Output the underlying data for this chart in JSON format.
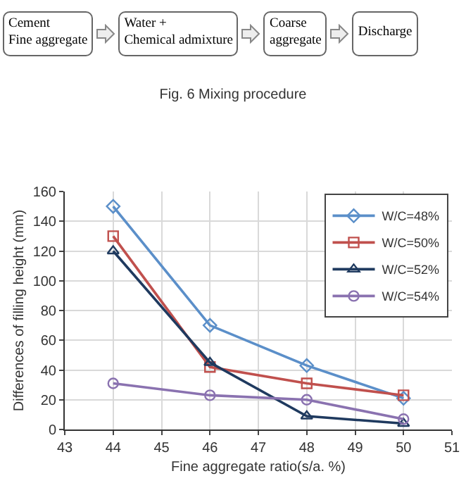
{
  "chart_data": {
    "type": "line",
    "annotations": [
      "Cement\nFine aggregate",
      "Water +\nChemical admixture",
      "Coarse\naggregate",
      "Discharge",
      "Fig. 6 Mixing procedure"
    ],
    "xlabel": "Fine aggregate ratio(s/a. %)",
    "ylabel": "Differences of filling height (mm)",
    "x": [
      44,
      46,
      48,
      50
    ],
    "series": [
      {
        "name": "W/C=48%",
        "color": "#5b8fc9",
        "marker": "diamond",
        "values": [
          150,
          70,
          43,
          21
        ]
      },
      {
        "name": "W/C=50%",
        "color": "#c0504d",
        "marker": "square",
        "values": [
          130,
          42,
          31,
          23
        ]
      },
      {
        "name": "W/C=52%",
        "color": "#1f3a5f",
        "marker": "triangle",
        "values": [
          120,
          45,
          9,
          4
        ]
      },
      {
        "name": "W/C=54%",
        "color": "#8a72b0",
        "marker": "circle",
        "values": [
          31,
          23,
          20,
          7
        ]
      }
    ],
    "xlim": [
      43,
      51
    ],
    "xticks": [
      43,
      44,
      45,
      46,
      47,
      48,
      49,
      50,
      51
    ],
    "ylim": [
      0,
      160
    ],
    "yticks": [
      0,
      20,
      40,
      60,
      80,
      100,
      120,
      140,
      160
    ],
    "grid": true,
    "legend": "top right",
    "line_style": "solid"
  }
}
